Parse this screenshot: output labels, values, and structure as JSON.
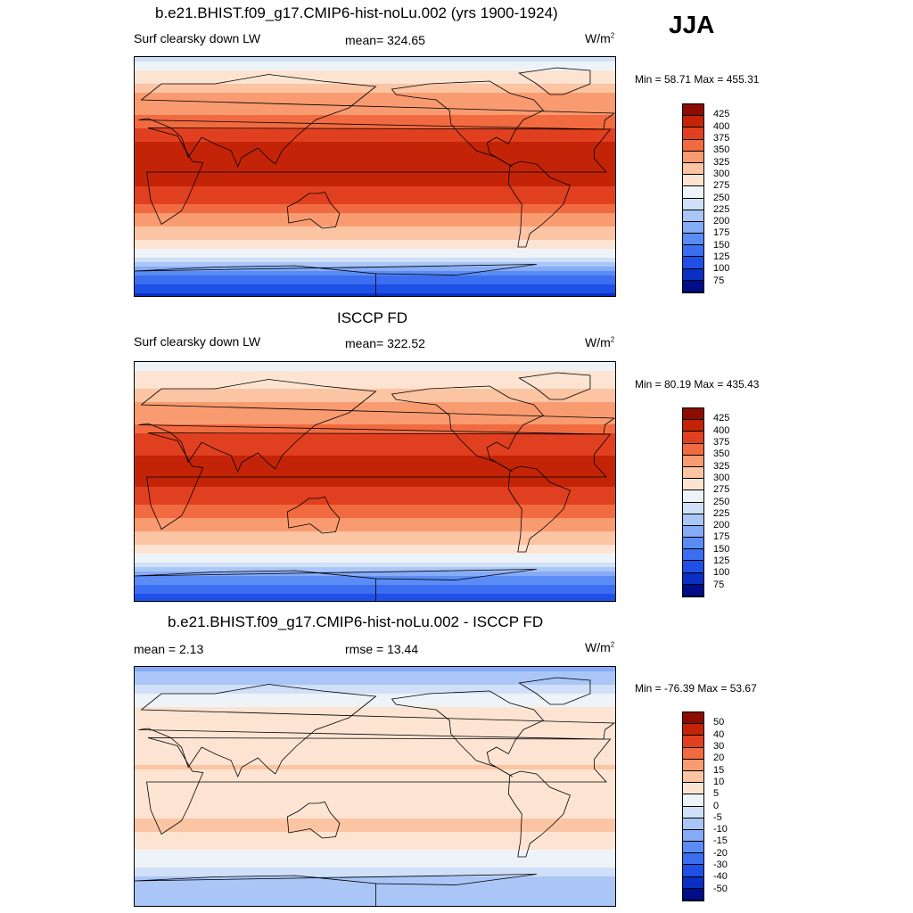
{
  "season": "JJA",
  "units_base": "W/m",
  "units_exp": "2",
  "panels": [
    {
      "title": "b.e21.BHIST.f09_g17.CMIP6-hist-noLu.002 (yrs 1900-1924)",
      "left_label": "Surf clearsky down LW",
      "center_label": "mean= 324.65",
      "min_max": "Min =  58.71 Max = 455.31"
    },
    {
      "title": "ISCCP FD",
      "left_label": "Surf clearsky down LW",
      "center_label": "mean= 322.52",
      "min_max": "Min =  80.19 Max = 435.43"
    },
    {
      "title": "b.e21.BHIST.f09_g17.CMIP6-hist-noLu.002 - ISCCP FD",
      "left_label": "mean =   2.13",
      "center_label": "rmse =  13.44",
      "min_max": "Min = -76.39 Max =  53.67"
    }
  ],
  "chart_data": [
    {
      "type": "heatmap",
      "title": "b.e21.BHIST.f09_g17.CMIP6-hist-noLu.002 (yrs 1900-1924)",
      "variable": "Surf clearsky down LW",
      "units": "W/m2",
      "mean": 324.65,
      "min": 58.71,
      "max": 455.31,
      "colorbar_levels": [
        75,
        100,
        125,
        150,
        175,
        200,
        225,
        250,
        275,
        300,
        325,
        350,
        375,
        400,
        425
      ],
      "colorbar_colors": [
        "#000d8a",
        "#0a2fc4",
        "#1e4fe6",
        "#3b6ef0",
        "#5b8cf5",
        "#86abf7",
        "#aac6f7",
        "#cfe0f8",
        "#eef3f8",
        "#fde4d2",
        "#fbc4a3",
        "#f99b70",
        "#f26a40",
        "#e0401f",
        "#c32408",
        "#8e0b00"
      ],
      "zonal_profile_lat": [
        90,
        60,
        45,
        30,
        15,
        0,
        -15,
        -30,
        -45,
        -60,
        -75,
        -90
      ],
      "zonal_profile_values": [
        245,
        330,
        350,
        395,
        410,
        410,
        385,
        345,
        305,
        250,
        140,
        90
      ]
    },
    {
      "type": "heatmap",
      "title": "ISCCP FD",
      "variable": "Surf clearsky down LW",
      "units": "W/m2",
      "mean": 322.52,
      "min": 80.19,
      "max": 435.43,
      "colorbar_levels": [
        75,
        100,
        125,
        150,
        175,
        200,
        225,
        250,
        275,
        300,
        325,
        350,
        375,
        400,
        425
      ],
      "colorbar_colors": [
        "#000d8a",
        "#0a2fc4",
        "#1e4fe6",
        "#3b6ef0",
        "#5b8cf5",
        "#86abf7",
        "#aac6f7",
        "#cfe0f8",
        "#eef3f8",
        "#fde4d2",
        "#fbc4a3",
        "#f99b70",
        "#f26a40",
        "#e0401f",
        "#c32408",
        "#8e0b00"
      ],
      "zonal_profile_lat": [
        90,
        60,
        45,
        30,
        15,
        0,
        -15,
        -30,
        -45,
        -60,
        -75,
        -90
      ],
      "zonal_profile_values": [
        260,
        325,
        345,
        390,
        405,
        405,
        380,
        340,
        300,
        245,
        150,
        95
      ]
    },
    {
      "type": "heatmap",
      "title": "b.e21.BHIST.f09_g17.CMIP6-hist-noLu.002 - ISCCP FD",
      "variable": "difference",
      "units": "W/m2",
      "mean": 2.13,
      "rmse": 13.44,
      "min": -76.39,
      "max": 53.67,
      "colorbar_levels": [
        -50,
        -40,
        -30,
        -20,
        -15,
        -10,
        -5,
        0,
        5,
        10,
        15,
        20,
        30,
        40,
        50
      ],
      "colorbar_colors": [
        "#000d8a",
        "#0a2fc4",
        "#1e4fe6",
        "#3b6ef0",
        "#5b8cf5",
        "#86abf7",
        "#aac6f7",
        "#cfe0f8",
        "#eef3f8",
        "#fde4d2",
        "#fbc4a3",
        "#f99b70",
        "#f26a40",
        "#e0401f",
        "#c32408",
        "#8e0b00"
      ],
      "zonal_profile_lat": [
        90,
        60,
        45,
        30,
        15,
        0,
        -15,
        -30,
        -45,
        -60,
        -75,
        -90
      ],
      "zonal_profile_values": [
        -12,
        5,
        8,
        6,
        10,
        5,
        8,
        12,
        5,
        0,
        -10,
        -8
      ]
    }
  ]
}
